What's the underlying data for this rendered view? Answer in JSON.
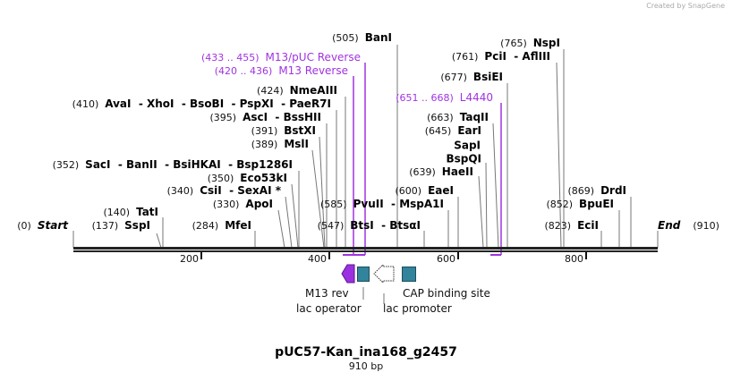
{
  "credit": "Created by SnapGene",
  "title": "pUC57-Kan_ina168_g2457",
  "size": "910 bp",
  "ruler": {
    "ticks": [
      "200",
      "400",
      "600",
      "800"
    ],
    "start": {
      "pos": "(0)",
      "name": "Start"
    },
    "end": {
      "pos": "(910)",
      "name": "End"
    }
  },
  "enzymes": [
    {
      "pos": "(505)",
      "name": "BanI"
    },
    {
      "pos": "(424)",
      "name": "NmeAIII"
    },
    {
      "pos": "(410)",
      "name": "AvaI  - XhoI  - BsoBI  - PspXI  - PaeR7I"
    },
    {
      "pos": "(395)",
      "name": "AscI  - BssHII"
    },
    {
      "pos": "(391)",
      "name": "BstXI"
    },
    {
      "pos": "(389)",
      "name": "MslI"
    },
    {
      "pos": "(352)",
      "name": "SacI  - BanII  - BsiHKAI  - Bsp1286I"
    },
    {
      "pos": "(350)",
      "name": "Eco53kI"
    },
    {
      "pos": "(340)",
      "name": "CsiI  - SexAI *"
    },
    {
      "pos": "(330)",
      "name": "ApoI"
    },
    {
      "pos": "(140)",
      "name": "TatI"
    },
    {
      "pos": "(137)",
      "name": "SspI"
    },
    {
      "pos": "(284)",
      "name": "MfeI"
    },
    {
      "pos": "(585)",
      "name": "PvuII  - MspA1I"
    },
    {
      "pos": "(547)",
      "name": "BtsI  - BtsαI"
    },
    {
      "pos": "(600)",
      "name": "EaeI"
    },
    {
      "pos": "(639)",
      "name": "HaeII"
    },
    {
      "pos": "",
      "name": "BspQI"
    },
    {
      "pos": "",
      "name": "SapI"
    },
    {
      "pos": "(645)",
      "name": "EarI"
    },
    {
      "pos": "(663)",
      "name": "TaqII"
    },
    {
      "pos": "(677)",
      "name": "BsiEI"
    },
    {
      "pos": "(761)",
      "name": "PciI  - AflIII"
    },
    {
      "pos": "(765)",
      "name": "NspI"
    },
    {
      "pos": "(869)",
      "name": "DrdI"
    },
    {
      "pos": "(852)",
      "name": "BpuEI"
    },
    {
      "pos": "(823)",
      "name": "EciI"
    }
  ],
  "primers": [
    {
      "range": "(433 .. 455)",
      "name": "M13/pUC Reverse"
    },
    {
      "range": "(420 .. 436)",
      "name": "M13 Reverse"
    },
    {
      "range": "(651 .. 668)",
      "name": "L4440"
    }
  ],
  "features": [
    {
      "name": "M13 rev",
      "color": "#9b30e0"
    },
    {
      "name": "lac operator",
      "color": "#31849b"
    },
    {
      "name": "lac promoter",
      "color": "#ffffff"
    },
    {
      "name": "CAP binding site",
      "color": "#31849b"
    }
  ]
}
